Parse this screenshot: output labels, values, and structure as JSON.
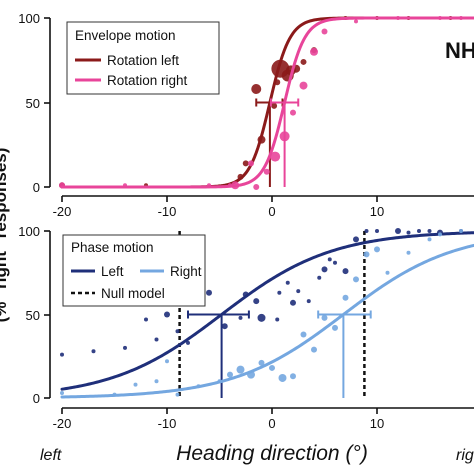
{
  "side_label": "NH",
  "y_axis_label_fragment": "(% \"right\" responses)",
  "x_axis": {
    "title": "Heading direction (°)",
    "left_word": "left",
    "right_word": "rig"
  },
  "chart_data": [
    {
      "type": "scatter",
      "panel": "top",
      "xlim": [
        -20,
        20
      ],
      "ylim": [
        0,
        100
      ],
      "x_ticks": [
        -20,
        -10,
        0,
        10
      ],
      "y_ticks": [
        0,
        50,
        100
      ],
      "tick_labels_y": [
        "0",
        "50",
        "100"
      ],
      "tick_labels_x": [
        "-20",
        "-10",
        "0",
        "10"
      ],
      "legend": {
        "title": "Envelope motion",
        "position": "top-left"
      },
      "series": [
        {
          "name": "Rotation left",
          "color": "#8b1a1a",
          "pse": -0.2,
          "slope": 1.05,
          "ci": [
            -1.5,
            1.0
          ],
          "points": [
            [
              -20,
              1,
              3
            ],
            [
              -12,
              1,
              2
            ],
            [
              -3,
              6,
              3
            ],
            [
              -2.5,
              14,
              3
            ],
            [
              -1,
              28,
              4
            ],
            [
              0.2,
              48,
              3
            ],
            [
              -1.5,
              58,
              5
            ],
            [
              0.5,
              62,
              3
            ],
            [
              0.8,
              70,
              9
            ],
            [
              1.5,
              66,
              6
            ],
            [
              1.8,
              69,
              5
            ],
            [
              2.3,
              70,
              4
            ],
            [
              3,
              74,
              3
            ],
            [
              4,
              81,
              3
            ],
            [
              5,
              99,
              2
            ],
            [
              7,
              100,
              2
            ],
            [
              10,
              100,
              2
            ],
            [
              13,
              100,
              2
            ],
            [
              17,
              100,
              2
            ]
          ]
        },
        {
          "name": "Rotation right",
          "color": "#e8459a",
          "pse": 1.2,
          "slope": 1.05,
          "ci": [
            -0.1,
            2.5
          ],
          "points": [
            [
              -20,
              1,
              3
            ],
            [
              -14,
              1,
              2
            ],
            [
              -6,
              1,
              2
            ],
            [
              -4,
              1,
              2
            ],
            [
              -3.5,
              1,
              4
            ],
            [
              -2,
              14,
              3
            ],
            [
              -1.5,
              0,
              3
            ],
            [
              -0.5,
              9,
              3
            ],
            [
              0.3,
              18,
              5
            ],
            [
              1.2,
              30,
              5
            ],
            [
              2,
              44,
              3
            ],
            [
              3,
              60,
              4
            ],
            [
              4,
              80,
              4
            ],
            [
              5,
              92,
              3
            ],
            [
              8,
              98,
              2
            ],
            [
              12,
              100,
              2
            ],
            [
              16,
              100,
              2
            ],
            [
              18,
              100,
              2
            ]
          ]
        }
      ]
    },
    {
      "type": "scatter",
      "panel": "bottom",
      "xlim": [
        -20,
        20
      ],
      "ylim": [
        0,
        100
      ],
      "x_ticks": [
        -20,
        -10,
        0,
        10
      ],
      "y_ticks": [
        0,
        50,
        100
      ],
      "tick_labels_y": [
        "0",
        "50",
        "100"
      ],
      "tick_labels_x": [
        "-20",
        "-10",
        "0",
        "10"
      ],
      "legend": {
        "title": "Phase motion",
        "position": "top-left"
      },
      "null_model": {
        "name": "Null model",
        "x": [
          -8.8,
          8.8
        ],
        "color": "#111111"
      },
      "series": [
        {
          "name": "Left",
          "color": "#1f2f7a",
          "pse": -4.8,
          "slope": 0.19,
          "ci": [
            -8.0,
            -2.2
          ],
          "points": [
            [
              -20,
              26,
              2
            ],
            [
              -17,
              28,
              2
            ],
            [
              -14,
              30,
              2
            ],
            [
              -12,
              47,
              2
            ],
            [
              -11,
              35,
              2
            ],
            [
              -10,
              50,
              3
            ],
            [
              -9,
              40,
              2
            ],
            [
              -8,
              33,
              2
            ],
            [
              -6,
              63,
              3
            ],
            [
              -4.5,
              43,
              3
            ],
            [
              -3,
              48,
              2
            ],
            [
              -2.5,
              62,
              3
            ],
            [
              -1.5,
              58,
              3
            ],
            [
              -1,
              48,
              4
            ],
            [
              0.5,
              47,
              2
            ],
            [
              0.7,
              63,
              2
            ],
            [
              1.5,
              69,
              2
            ],
            [
              2,
              57,
              3
            ],
            [
              2.5,
              64,
              2
            ],
            [
              3.5,
              58,
              2
            ],
            [
              4.5,
              72,
              2
            ],
            [
              5,
              77,
              3
            ],
            [
              5.5,
              83,
              2
            ],
            [
              6,
              81,
              2
            ],
            [
              7,
              76,
              3
            ],
            [
              8,
              95,
              3
            ],
            [
              9,
              100,
              2
            ],
            [
              10,
              100,
              2
            ],
            [
              12,
              100,
              3
            ],
            [
              13,
              99,
              2
            ],
            [
              14,
              100,
              2
            ],
            [
              15,
              100,
              2
            ],
            [
              16,
              99,
              3
            ],
            [
              18,
              100,
              2
            ]
          ]
        },
        {
          "name": "Right",
          "color": "#74a7e0",
          "pse": 6.8,
          "slope": 0.19,
          "ci": [
            4.4,
            9.4
          ],
          "points": [
            [
              -20,
              3,
              2
            ],
            [
              -15,
              2,
              2
            ],
            [
              -13,
              8,
              2
            ],
            [
              -11,
              10,
              2
            ],
            [
              -10,
              22,
              2
            ],
            [
              -9,
              2,
              2
            ],
            [
              -7,
              7,
              2
            ],
            [
              -5,
              10,
              2
            ],
            [
              -4,
              14,
              3
            ],
            [
              -3,
              17,
              4
            ],
            [
              -2,
              14,
              4
            ],
            [
              -1,
              21,
              3
            ],
            [
              0,
              18,
              3
            ],
            [
              1,
              12,
              4
            ],
            [
              2,
              13,
              3
            ],
            [
              3,
              38,
              3
            ],
            [
              4,
              29,
              3
            ],
            [
              5,
              48,
              3
            ],
            [
              6,
              42,
              3
            ],
            [
              7,
              60,
              3
            ],
            [
              8,
              71,
              3
            ],
            [
              9,
              86,
              3
            ],
            [
              10,
              89,
              3
            ],
            [
              11,
              75,
              2
            ],
            [
              13,
              87,
              2
            ],
            [
              15,
              95,
              2
            ],
            [
              16,
              98,
              2
            ],
            [
              18,
              100,
              2
            ]
          ]
        }
      ]
    }
  ]
}
